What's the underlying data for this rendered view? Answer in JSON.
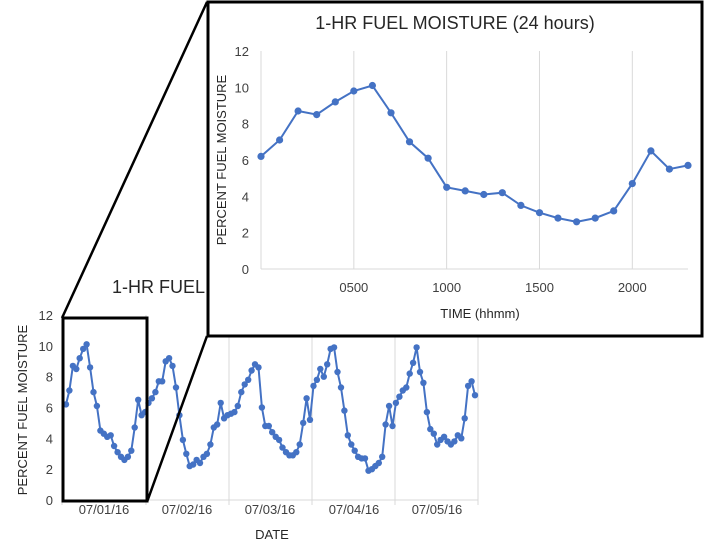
{
  "chart_data": [
    {
      "type": "line",
      "title": "1-HR FUEL MOISTURE (5 days)",
      "title_visible": "1-HR FUEL",
      "xlabel": "DATE",
      "ylabel": "PERCENT FUEL MOISTURE",
      "ylim": [
        0,
        12
      ],
      "y_ticks": [
        "0",
        "2",
        "4",
        "6",
        "8",
        "10",
        "12"
      ],
      "x_tick_labels": [
        "07/01/16",
        "07/02/16",
        "07/03/16",
        "07/04/16",
        "07/05/16"
      ],
      "grid": "vertical",
      "color": "#4472C4",
      "series": [
        {
          "values": [
            6.2,
            7.1,
            8.7,
            8.5,
            9.2,
            9.8,
            10.1,
            8.6,
            7.0,
            6.1,
            4.5,
            4.3,
            4.1,
            4.2,
            3.5,
            3.1,
            2.8,
            2.6,
            2.8,
            3.2,
            4.7,
            6.5,
            5.5,
            5.7,
            6.3,
            6.6,
            7.0,
            7.7,
            7.7,
            9.0,
            9.2,
            8.7,
            7.3,
            5.5,
            3.9,
            3.0,
            2.2,
            2.3,
            2.6,
            2.4,
            2.8,
            3.0,
            3.6,
            4.7,
            4.9,
            6.3,
            5.3,
            5.5,
            5.6,
            5.7,
            6.1,
            7.0,
            7.5,
            7.8,
            8.4,
            8.8,
            8.6,
            6.0,
            4.8,
            4.8,
            4.4,
            4.1,
            3.9,
            3.4,
            3.1,
            2.9,
            2.9,
            3.1,
            3.6,
            5.0,
            6.6,
            5.2,
            7.4,
            7.8,
            8.5,
            8.0,
            8.8,
            9.8,
            9.9,
            8.3,
            7.3,
            5.8,
            4.2,
            3.6,
            3.2,
            2.8,
            2.7,
            2.7,
            1.9,
            2.0,
            2.2,
            2.4,
            2.8,
            4.9,
            6.1,
            4.8,
            6.3,
            6.7,
            7.1,
            7.3,
            8.2,
            8.9,
            9.9,
            8.3,
            7.6,
            5.7,
            4.6,
            4.3,
            3.6,
            3.9,
            4.1,
            3.8,
            3.6,
            3.8,
            4.2,
            4.0,
            5.3,
            7.4,
            7.7,
            6.8
          ]
        }
      ]
    },
    {
      "type": "line",
      "title": "1-HR FUEL MOISTURE (24 hours)",
      "xlabel": "TIME (hhmm)",
      "ylabel": "PERCENT FUEL MOISTURE",
      "ylim": [
        0,
        12
      ],
      "xlim": [
        0,
        2300
      ],
      "y_ticks": [
        "0",
        "2",
        "4",
        "6",
        "8",
        "10",
        "12"
      ],
      "x_tick_labels": [
        "0500",
        "1000",
        "1500",
        "2000"
      ],
      "x_tick_values": [
        500,
        1000,
        1500,
        2000
      ],
      "grid": "vertical",
      "color": "#4472C4",
      "series": [
        {
          "x": [
            0,
            100,
            200,
            300,
            400,
            500,
            600,
            700,
            800,
            900,
            1000,
            1100,
            1200,
            1300,
            1400,
            1500,
            1600,
            1700,
            1800,
            1900,
            2000,
            2100,
            2200,
            2300
          ],
          "values": [
            6.2,
            7.1,
            8.7,
            8.5,
            9.2,
            9.8,
            10.1,
            8.6,
            7.0,
            6.1,
            4.5,
            4.3,
            4.1,
            4.2,
            3.5,
            3.1,
            2.8,
            2.6,
            2.8,
            3.2,
            4.7,
            6.5,
            5.5,
            5.7
          ]
        }
      ]
    }
  ]
}
